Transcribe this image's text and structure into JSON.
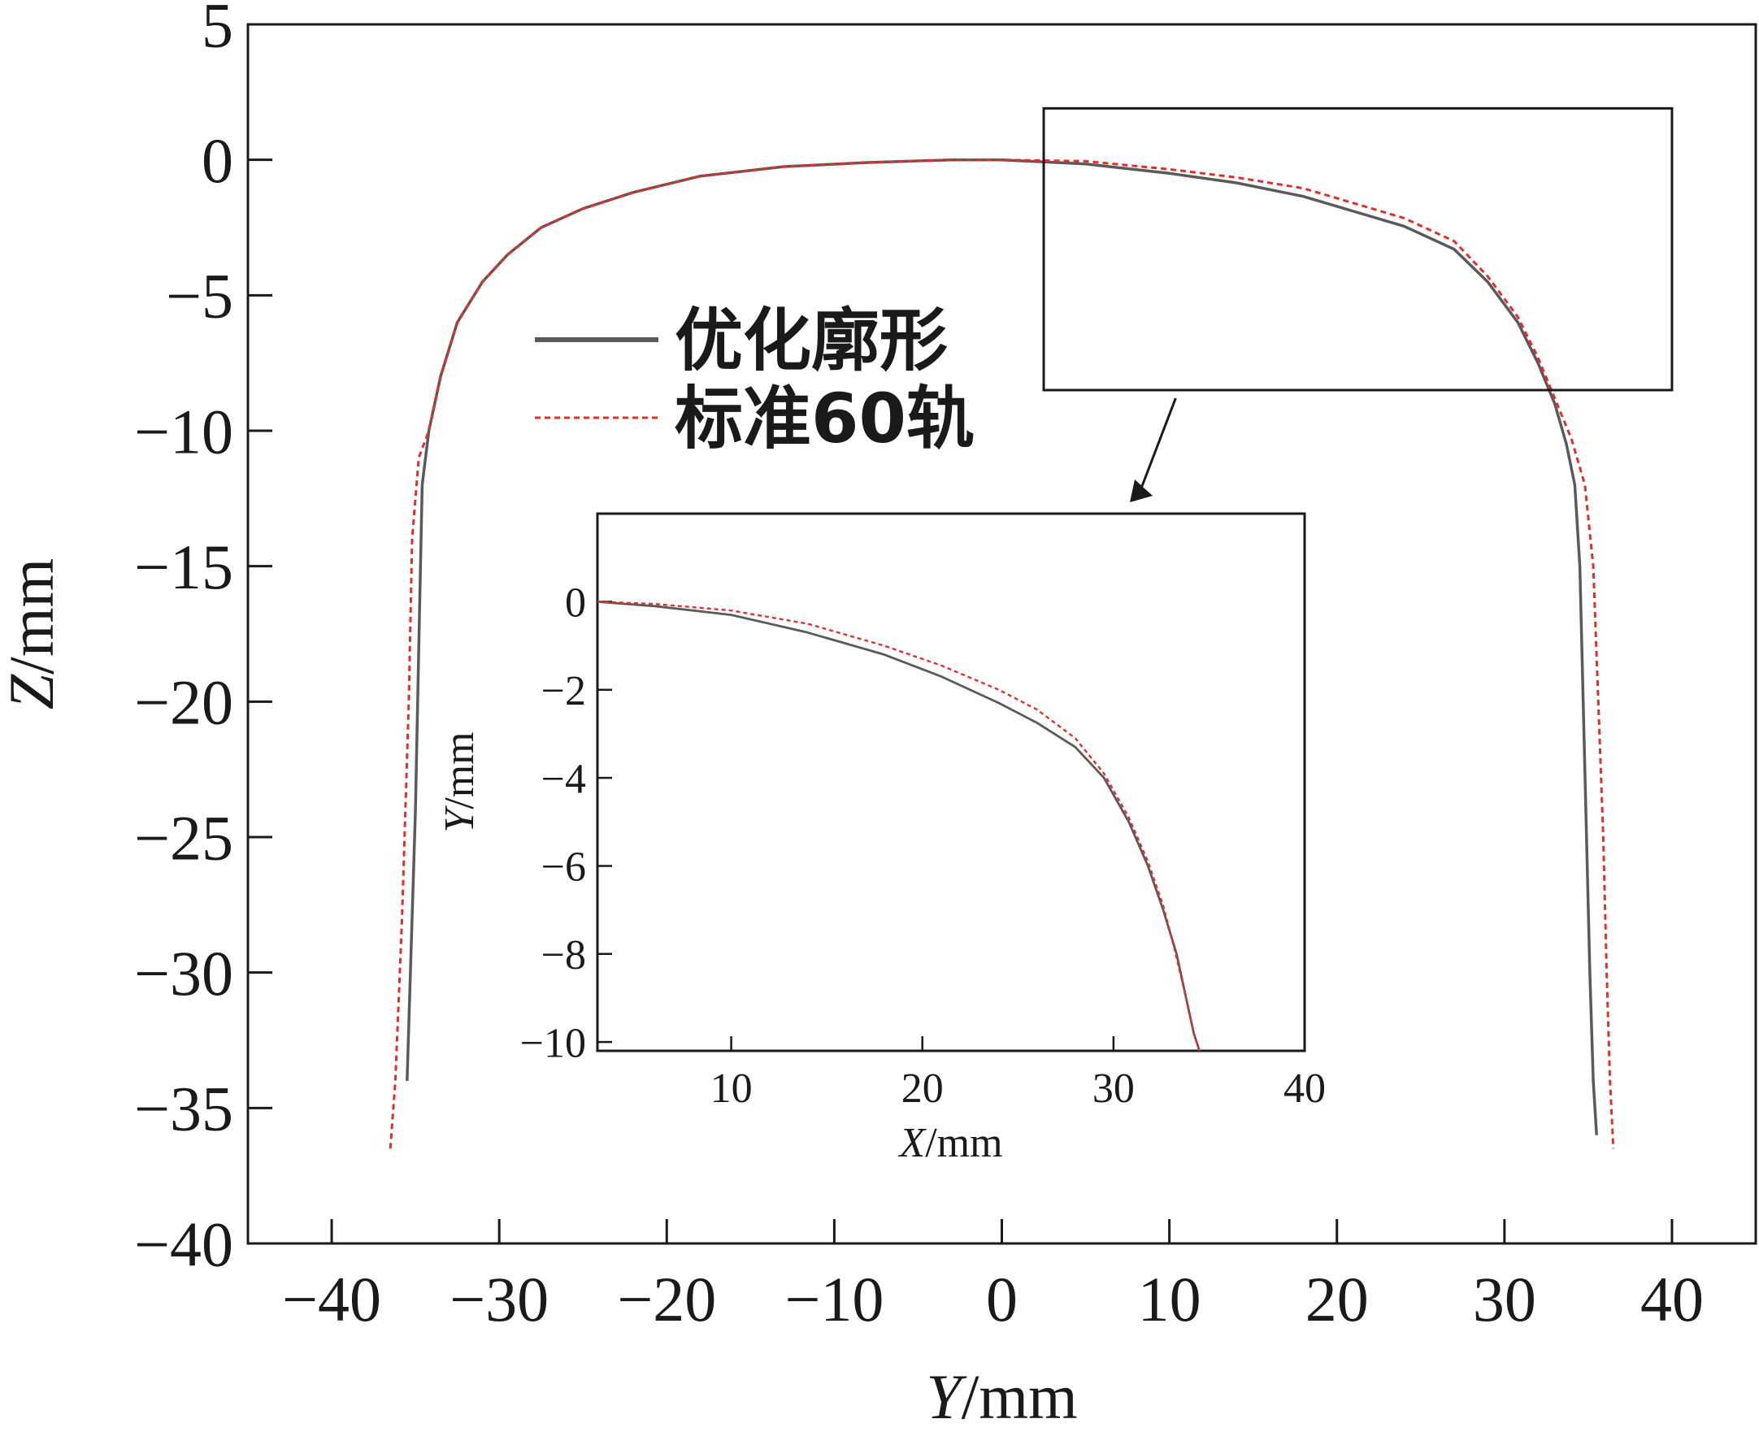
{
  "chart_data": [
    {
      "id": "main",
      "type": "line",
      "title": "",
      "xlabel_var": "Y",
      "xlabel_unit": "/mm",
      "ylabel_var": "Z",
      "ylabel_unit": "/mm",
      "xlim": [
        -45,
        45
      ],
      "ylim": [
        -40,
        5
      ],
      "xticks": [
        -40,
        -30,
        -20,
        -10,
        0,
        10,
        20,
        30,
        40
      ],
      "xtick_labels": [
        "−40",
        "−30",
        "−20",
        "−10",
        "0",
        "10",
        "20",
        "30",
        "40"
      ],
      "yticks": [
        5,
        0,
        -5,
        -10,
        -15,
        -20,
        -25,
        -30,
        -35,
        -40
      ],
      "ytick_labels": [
        "5",
        "0",
        "−5",
        "−10",
        "−15",
        "−20",
        "−25",
        "−30",
        "−35",
        "−40"
      ],
      "grid": false,
      "legend_position": "center-left",
      "series": [
        {
          "name": "优化廓形",
          "color": "#5a5a5a",
          "style": "solid",
          "x": [
            -35.5,
            -35.3,
            -35.0,
            -34.8,
            -34.6,
            -34.2,
            -33.5,
            -32.5,
            -31.0,
            -29.5,
            -27.5,
            -25.0,
            -22.0,
            -18.0,
            -13.0,
            -8.0,
            -3.0,
            0,
            5.0,
            10.0,
            14.0,
            18.0,
            21.0,
            24.0,
            27.0,
            29.0,
            30.8,
            32.0,
            33.0,
            33.7,
            34.2,
            34.5,
            34.7,
            34.9,
            35.1,
            35.3,
            35.5
          ],
          "y": [
            -34.0,
            -30.0,
            -24.0,
            -18.0,
            -12.0,
            -10.0,
            -8.0,
            -6.0,
            -4.5,
            -3.5,
            -2.5,
            -1.8,
            -1.2,
            -0.6,
            -0.25,
            -0.1,
            0.0,
            0.0,
            -0.15,
            -0.5,
            -0.85,
            -1.35,
            -1.9,
            -2.45,
            -3.3,
            -4.5,
            -6.0,
            -7.5,
            -9.0,
            -10.5,
            -12.0,
            -15.0,
            -20.0,
            -25.0,
            -30.0,
            -34.0,
            -36.0
          ]
        },
        {
          "name": "标准60轨",
          "color": "#e0302a",
          "style": "dashed",
          "x": [
            -36.5,
            -36.2,
            -35.8,
            -35.4,
            -35.2,
            -34.8,
            -34.2,
            -33.5,
            -32.5,
            -31.0,
            -29.5,
            -27.5,
            -25.0,
            -22.0,
            -18.0,
            -13.0,
            -8.0,
            -3.0,
            0,
            5.0,
            10.0,
            14.0,
            18.0,
            21.0,
            24.0,
            27.0,
            29.0,
            30.8,
            32.0,
            33.0,
            34.0,
            34.8,
            35.3,
            35.6,
            35.9,
            36.1,
            36.3,
            36.5
          ],
          "y": [
            -36.5,
            -34.0,
            -28.0,
            -20.0,
            -14.0,
            -11.0,
            -10.0,
            -8.0,
            -6.0,
            -4.5,
            -3.5,
            -2.5,
            -1.8,
            -1.2,
            -0.6,
            -0.25,
            -0.1,
            0.0,
            0.0,
            -0.05,
            -0.35,
            -0.65,
            -1.05,
            -1.6,
            -2.15,
            -3.0,
            -4.3,
            -5.8,
            -7.3,
            -8.8,
            -10.3,
            -12.0,
            -15.0,
            -20.0,
            -25.0,
            -30.0,
            -34.0,
            -36.5
          ]
        }
      ]
    },
    {
      "id": "inset",
      "type": "line",
      "title": "",
      "xlabel_var": "X",
      "xlabel_unit": "/mm",
      "ylabel_var": "Y",
      "ylabel_unit": "/mm",
      "xlim": [
        3,
        40
      ],
      "ylim": [
        -10.2,
        2
      ],
      "xticks": [
        10,
        20,
        30,
        40
      ],
      "xtick_labels": [
        "10",
        "20",
        "30",
        "40"
      ],
      "yticks": [
        0,
        -2,
        -4,
        -6,
        -8,
        -10
      ],
      "ytick_labels": [
        "0",
        "−2",
        "−4",
        "−6",
        "−8",
        "−10"
      ],
      "grid": false,
      "series": [
        {
          "name": "优化廓形",
          "color": "#5a5a5a",
          "style": "solid",
          "x": [
            3.0,
            6.0,
            10.0,
            14.0,
            18.0,
            21.0,
            24.0,
            26.0,
            28.0,
            29.5,
            30.8,
            31.8,
            32.6,
            33.3,
            33.8,
            34.2,
            34.5
          ],
          "y": [
            0.0,
            -0.1,
            -0.3,
            -0.7,
            -1.2,
            -1.7,
            -2.3,
            -2.75,
            -3.3,
            -4.0,
            -5.0,
            -6.0,
            -7.0,
            -8.0,
            -9.0,
            -9.8,
            -10.2
          ]
        },
        {
          "name": "标准60轨",
          "color": "#e0302a",
          "style": "dashed",
          "x": [
            3.0,
            6.0,
            10.0,
            14.0,
            18.0,
            21.0,
            24.0,
            26.0,
            28.0,
            29.5,
            30.8,
            31.8,
            32.6,
            33.2,
            33.8,
            34.2,
            34.5
          ],
          "y": [
            0.0,
            -0.05,
            -0.2,
            -0.5,
            -1.0,
            -1.45,
            -2.0,
            -2.45,
            -3.1,
            -3.9,
            -4.9,
            -5.9,
            -6.9,
            -7.9,
            -9.0,
            -9.8,
            -10.2
          ]
        }
      ]
    }
  ],
  "legend": [
    {
      "label": "优化廓形",
      "color": "#5a5a5a",
      "style": "solid"
    },
    {
      "label": "标准60轨",
      "color": "#e0302a",
      "style": "dashed"
    }
  ],
  "zoom_box": {
    "x_range": [
      2.5,
      40
    ],
    "y_range": [
      -8.5,
      1.9
    ]
  },
  "colors": {
    "axis": "#1a1a1a",
    "solid": "#5a5a5a",
    "dashed": "#e0302a"
  }
}
